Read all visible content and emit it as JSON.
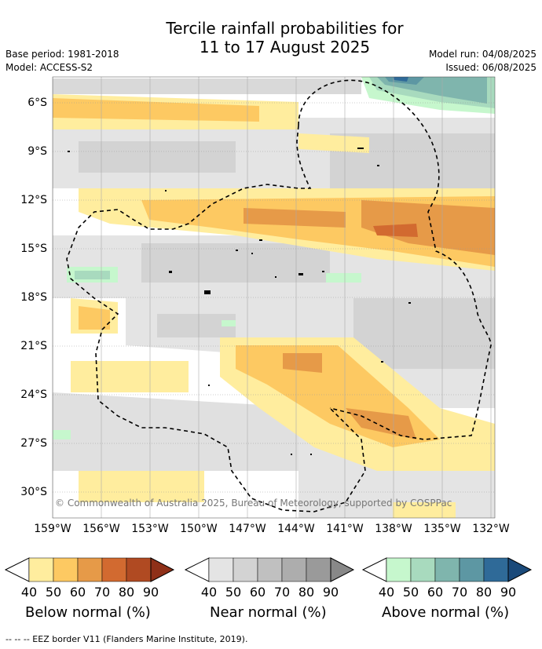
{
  "title_line1": "Tercile rainfall probabilities for",
  "title_line2": "11 to 17 August 2025",
  "base_period": "Base period: 1981-2018",
  "model": "Model: ACCESS-S2",
  "model_run": "Model run: 04/08/2025",
  "issued": "Issued: 06/08/2025",
  "copyright": "© Commonwealth of Australia 2025, Bureau of Meteorology, supported by COSPPac",
  "footnote": "-- -- -- EEZ border V11 (Flanders Marine Institute, 2019).",
  "lat_labels": [
    "6°S",
    "9°S",
    "12°S",
    "15°S",
    "18°S",
    "21°S",
    "24°S",
    "27°S",
    "30°S"
  ],
  "lon_labels": [
    "159°W",
    "156°W",
    "153°W",
    "150°W",
    "147°W",
    "144°W",
    "141°W",
    "138°W",
    "135°W",
    "132°W"
  ],
  "colorbars": [
    {
      "title": "Below normal (%)",
      "ticks": [
        "40",
        "50",
        "60",
        "70",
        "80",
        "90"
      ],
      "colors": [
        "#ffed9e",
        "#fdc962",
        "#e69a48",
        "#d26a30",
        "#b04a22",
        "#8f3018"
      ]
    },
    {
      "title": "Near normal (%)",
      "ticks": [
        "40",
        "50",
        "60",
        "70",
        "80",
        "90"
      ],
      "colors": [
        "#e4e4e4",
        "#d3d3d3",
        "#c0c0c0",
        "#adadad",
        "#9a9a9a",
        "#888888"
      ]
    },
    {
      "title": "Above normal (%)",
      "ticks": [
        "40",
        "50",
        "60",
        "70",
        "80",
        "90"
      ],
      "colors": [
        "#c6f7cd",
        "#a8dabe",
        "#7fb5ad",
        "#5d97a3",
        "#2f6a98",
        "#1b4a7a"
      ]
    }
  ],
  "colors": {
    "below_40": "#ffed9e",
    "below_50": "#fdc962",
    "below_60": "#e69a48",
    "below_70": "#d26a30",
    "near_40": "#e4e4e4",
    "near_50": "#d3d3d3",
    "above_40": "#c6f7cd",
    "above_50": "#a8dabe",
    "above_60": "#7fb5ad",
    "above_70": "#5d97a3",
    "above_80": "#2f6a98"
  }
}
